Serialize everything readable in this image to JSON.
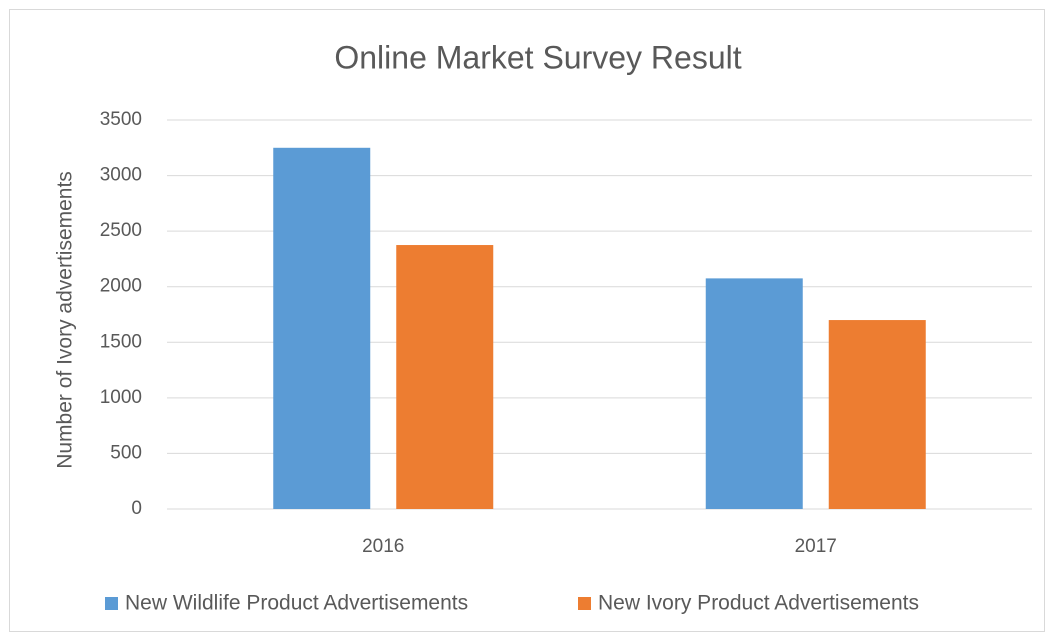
{
  "chart_data": {
    "type": "bar",
    "title": "Online Market Survey Result",
    "y_label": "Number of Ivory advertisements",
    "categories": [
      "2016",
      "2017"
    ],
    "series": [
      {
        "name": "New Wildlife Product Advertisements",
        "color": "#5b9bd5",
        "values": [
          3250,
          2075
        ]
      },
      {
        "name": "New Ivory Product Advertisements",
        "color": "#ed7d31",
        "values": [
          2375,
          1700
        ]
      }
    ],
    "ylim": [
      0,
      3500
    ],
    "yticks": [
      0,
      500,
      1000,
      1500,
      2000,
      2500,
      3000,
      3500
    ],
    "grid": true,
    "legend": "bottom"
  }
}
